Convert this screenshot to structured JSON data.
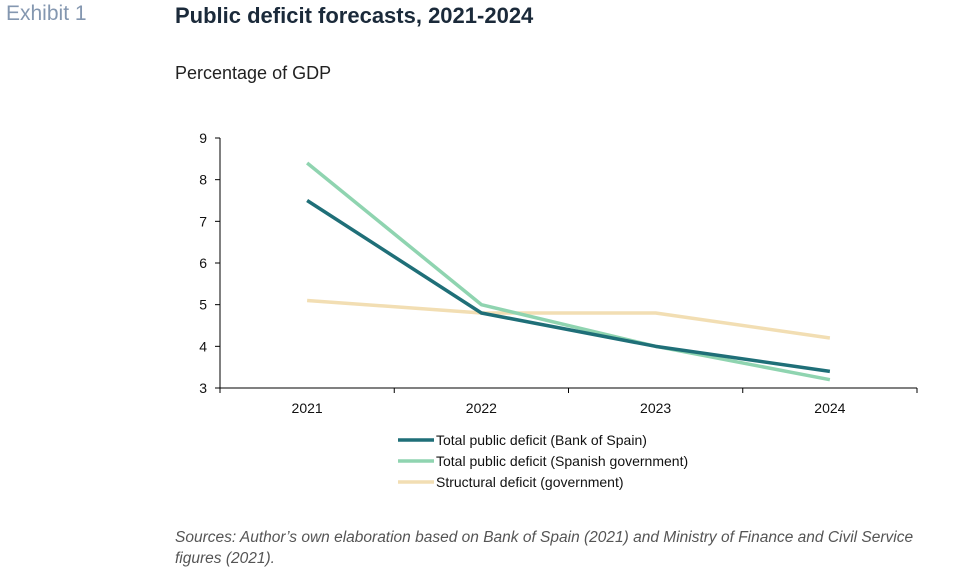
{
  "exhibit_label": "Exhibit 1",
  "title": "Public deficit forecasts, 2021-2024",
  "subtitle": "Percentage of GDP",
  "source": "Sources: Author’s own elaboration based on Bank of Spain (2021) and Ministry of Finance and Civil Service figures (2021).",
  "chart_data": {
    "type": "line",
    "categories": [
      "2021",
      "2022",
      "2023",
      "2024"
    ],
    "ylim": [
      3,
      9
    ],
    "yticks": [
      3,
      4,
      5,
      6,
      7,
      8,
      9
    ],
    "grid": false,
    "legend_position": "bottom",
    "series": [
      {
        "name": "Total public deficit (Bank of Spain)",
        "values": [
          7.5,
          4.8,
          4.0,
          3.4
        ],
        "color": "#1f6f78"
      },
      {
        "name": "Total public deficit (Spanish government)",
        "values": [
          8.4,
          5.0,
          4.0,
          3.2
        ],
        "color": "#8fd4b0"
      },
      {
        "name": "Structural deficit (government)",
        "values": [
          5.1,
          4.8,
          4.8,
          4.2
        ],
        "color": "#f2deb3"
      }
    ]
  }
}
